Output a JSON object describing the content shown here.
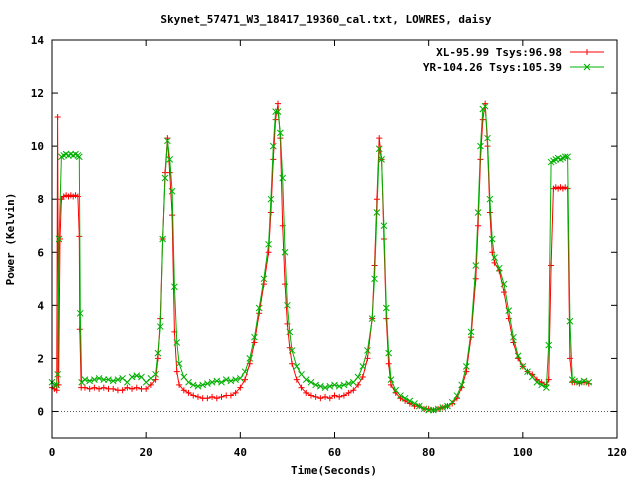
{
  "chart_data": {
    "type": "line",
    "title": "Skynet_57471_W3_18417_19360_cal.txt, LOWRES, daisy",
    "xlabel": "Time(Seconds)",
    "ylabel": "Power (Kelvin)",
    "xlim": [
      0,
      120
    ],
    "ylim": [
      -1,
      14
    ],
    "xticks": [
      0,
      20,
      40,
      60,
      80,
      100,
      120
    ],
    "yticks": [
      0,
      2,
      4,
      6,
      8,
      10,
      12,
      14
    ],
    "legend_position": "top-right",
    "series": [
      {
        "name": "XL-95.99 Tsys:96.98",
        "color": "#ff0000",
        "marker": "plus",
        "points": [
          [
            0.0,
            0.9
          ],
          [
            0.5,
            0.85
          ],
          [
            1.0,
            0.8
          ],
          [
            1.2,
            11.1
          ],
          [
            1.4,
            1.0
          ],
          [
            1.7,
            6.5
          ],
          [
            2.0,
            8.0
          ],
          [
            2.5,
            8.1
          ],
          [
            3.0,
            8.15
          ],
          [
            3.5,
            8.1
          ],
          [
            4.0,
            8.15
          ],
          [
            4.5,
            8.1
          ],
          [
            5.0,
            8.15
          ],
          [
            5.5,
            8.1
          ],
          [
            5.8,
            6.6
          ],
          [
            5.9,
            3.1
          ],
          [
            6.2,
            0.9
          ],
          [
            7,
            0.9
          ],
          [
            8,
            0.85
          ],
          [
            9,
            0.9
          ],
          [
            10,
            0.85
          ],
          [
            11,
            0.9
          ],
          [
            12,
            0.85
          ],
          [
            13,
            0.85
          ],
          [
            14,
            0.8
          ],
          [
            15,
            0.8
          ],
          [
            16,
            0.9
          ],
          [
            17,
            0.85
          ],
          [
            18,
            0.9
          ],
          [
            19,
            0.85
          ],
          [
            20,
            0.85
          ],
          [
            21,
            1.0
          ],
          [
            22,
            1.2
          ],
          [
            22.5,
            2.0
          ],
          [
            23,
            3.5
          ],
          [
            23.5,
            6.5
          ],
          [
            24,
            9.0
          ],
          [
            24.5,
            10.3
          ],
          [
            25,
            9.0
          ],
          [
            25.5,
            7.4
          ],
          [
            26,
            3.0
          ],
          [
            26.5,
            1.5
          ],
          [
            27,
            1.0
          ],
          [
            28,
            0.8
          ],
          [
            29,
            0.7
          ],
          [
            30,
            0.6
          ],
          [
            31,
            0.55
          ],
          [
            32,
            0.5
          ],
          [
            33,
            0.5
          ],
          [
            34,
            0.55
          ],
          [
            35,
            0.5
          ],
          [
            36,
            0.55
          ],
          [
            37,
            0.6
          ],
          [
            38,
            0.6
          ],
          [
            39,
            0.7
          ],
          [
            40,
            0.9
          ],
          [
            41,
            1.2
          ],
          [
            42,
            1.8
          ],
          [
            43,
            2.6
          ],
          [
            44,
            3.7
          ],
          [
            45,
            4.8
          ],
          [
            46,
            6.0
          ],
          [
            46.5,
            7.5
          ],
          [
            47,
            9.5
          ],
          [
            47.5,
            11.0
          ],
          [
            48,
            11.6
          ],
          [
            48.5,
            10.3
          ],
          [
            49,
            7.0
          ],
          [
            49.5,
            4.8
          ],
          [
            50,
            3.3
          ],
          [
            50.5,
            2.4
          ],
          [
            51,
            1.8
          ],
          [
            52,
            1.2
          ],
          [
            53,
            0.9
          ],
          [
            54,
            0.7
          ],
          [
            55,
            0.6
          ],
          [
            56,
            0.55
          ],
          [
            57,
            0.5
          ],
          [
            58,
            0.55
          ],
          [
            59,
            0.5
          ],
          [
            60,
            0.6
          ],
          [
            61,
            0.55
          ],
          [
            62,
            0.6
          ],
          [
            63,
            0.7
          ],
          [
            64,
            0.8
          ],
          [
            65,
            1.0
          ],
          [
            66,
            1.3
          ],
          [
            67,
            2.0
          ],
          [
            68,
            3.5
          ],
          [
            68.5,
            5.5
          ],
          [
            69,
            8.0
          ],
          [
            69.5,
            10.3
          ],
          [
            70,
            9.5
          ],
          [
            70.5,
            6.5
          ],
          [
            71,
            3.5
          ],
          [
            71.5,
            1.8
          ],
          [
            72,
            1.0
          ],
          [
            73,
            0.7
          ],
          [
            74,
            0.5
          ],
          [
            75,
            0.4
          ],
          [
            76,
            0.3
          ],
          [
            77,
            0.2
          ],
          [
            78,
            0.2
          ],
          [
            79,
            0.1
          ],
          [
            80,
            0.1
          ],
          [
            81,
            0.05
          ],
          [
            82,
            0.1
          ],
          [
            83,
            0.15
          ],
          [
            84,
            0.2
          ],
          [
            85,
            0.3
          ],
          [
            86,
            0.5
          ],
          [
            87,
            0.9
          ],
          [
            88,
            1.5
          ],
          [
            89,
            2.8
          ],
          [
            90,
            5.0
          ],
          [
            90.5,
            7.0
          ],
          [
            91,
            9.5
          ],
          [
            91.5,
            11.0
          ],
          [
            92,
            11.6
          ],
          [
            92.5,
            10.0
          ],
          [
            93,
            7.5
          ],
          [
            93.5,
            6.0
          ],
          [
            94,
            5.6
          ],
          [
            95,
            5.3
          ],
          [
            96,
            4.5
          ],
          [
            97,
            3.5
          ],
          [
            98,
            2.6
          ],
          [
            99,
            2.0
          ],
          [
            100,
            1.7
          ],
          [
            101,
            1.5
          ],
          [
            102,
            1.4
          ],
          [
            103,
            1.2
          ],
          [
            104,
            1.1
          ],
          [
            105,
            1.0
          ],
          [
            105.5,
            1.2
          ],
          [
            106,
            5.5
          ],
          [
            106.5,
            8.4
          ],
          [
            107,
            8.45
          ],
          [
            107.5,
            8.4
          ],
          [
            108,
            8.45
          ],
          [
            108.5,
            8.4
          ],
          [
            109,
            8.45
          ],
          [
            109.5,
            8.4
          ],
          [
            110,
            2.0
          ],
          [
            110.5,
            1.1
          ],
          [
            111,
            1.1
          ],
          [
            112,
            1.05
          ],
          [
            113,
            1.1
          ],
          [
            114,
            1.05
          ]
        ]
      },
      {
        "name": "YR-104.26 Tsys:105.39",
        "color": "#00b000",
        "marker": "cross",
        "points": [
          [
            0.0,
            1.1
          ],
          [
            0.5,
            1.0
          ],
          [
            1.0,
            1.0
          ],
          [
            1.2,
            1.4
          ],
          [
            1.5,
            6.5
          ],
          [
            2.0,
            9.6
          ],
          [
            2.5,
            9.65
          ],
          [
            3.0,
            9.7
          ],
          [
            3.5,
            9.65
          ],
          [
            4.0,
            9.7
          ],
          [
            4.5,
            9.65
          ],
          [
            5.0,
            9.7
          ],
          [
            5.5,
            9.65
          ],
          [
            5.8,
            9.6
          ],
          [
            6.0,
            3.7
          ],
          [
            6.3,
            1.1
          ],
          [
            7,
            1.2
          ],
          [
            8,
            1.15
          ],
          [
            9,
            1.2
          ],
          [
            10,
            1.25
          ],
          [
            11,
            1.2
          ],
          [
            12,
            1.2
          ],
          [
            13,
            1.15
          ],
          [
            14,
            1.2
          ],
          [
            15,
            1.25
          ],
          [
            16,
            1.1
          ],
          [
            17,
            1.3
          ],
          [
            18,
            1.35
          ],
          [
            19,
            1.3
          ],
          [
            20,
            1.1
          ],
          [
            21,
            1.25
          ],
          [
            22,
            1.4
          ],
          [
            22.5,
            2.2
          ],
          [
            23,
            3.2
          ],
          [
            23.5,
            6.5
          ],
          [
            24,
            8.8
          ],
          [
            24.5,
            10.2
          ],
          [
            25,
            9.5
          ],
          [
            25.5,
            8.3
          ],
          [
            26,
            4.7
          ],
          [
            26.5,
            2.6
          ],
          [
            27,
            1.8
          ],
          [
            28,
            1.3
          ],
          [
            29,
            1.1
          ],
          [
            30,
            1.0
          ],
          [
            31,
            0.95
          ],
          [
            32,
            1.0
          ],
          [
            33,
            1.05
          ],
          [
            34,
            1.1
          ],
          [
            35,
            1.15
          ],
          [
            36,
            1.1
          ],
          [
            37,
            1.2
          ],
          [
            38,
            1.15
          ],
          [
            39,
            1.2
          ],
          [
            40,
            1.25
          ],
          [
            41,
            1.5
          ],
          [
            42,
            2.0
          ],
          [
            43,
            2.8
          ],
          [
            44,
            3.9
          ],
          [
            45,
            5.0
          ],
          [
            46,
            6.3
          ],
          [
            46.5,
            8.0
          ],
          [
            47,
            10.0
          ],
          [
            47.5,
            11.3
          ],
          [
            48,
            11.3
          ],
          [
            48.5,
            10.5
          ],
          [
            49,
            8.8
          ],
          [
            49.5,
            6.0
          ],
          [
            50,
            4.0
          ],
          [
            50.5,
            3.0
          ],
          [
            51,
            2.3
          ],
          [
            52,
            1.7
          ],
          [
            53,
            1.4
          ],
          [
            54,
            1.2
          ],
          [
            55,
            1.1
          ],
          [
            56,
            1.0
          ],
          [
            57,
            0.95
          ],
          [
            58,
            0.9
          ],
          [
            59,
            0.95
          ],
          [
            60,
            1.0
          ],
          [
            61,
            0.95
          ],
          [
            62,
            1.0
          ],
          [
            63,
            1.05
          ],
          [
            64,
            1.1
          ],
          [
            65,
            1.3
          ],
          [
            66,
            1.7
          ],
          [
            67,
            2.3
          ],
          [
            68,
            3.5
          ],
          [
            68.5,
            5.0
          ],
          [
            69,
            7.5
          ],
          [
            69.5,
            9.9
          ],
          [
            70,
            9.5
          ],
          [
            70.5,
            7.0
          ],
          [
            71,
            3.9
          ],
          [
            71.5,
            2.2
          ],
          [
            72,
            1.2
          ],
          [
            73,
            0.8
          ],
          [
            74,
            0.6
          ],
          [
            75,
            0.5
          ],
          [
            76,
            0.4
          ],
          [
            77,
            0.3
          ],
          [
            78,
            0.2
          ],
          [
            79,
            0.1
          ],
          [
            80,
            0.05
          ],
          [
            81,
            0.05
          ],
          [
            82,
            0.1
          ],
          [
            83,
            0.15
          ],
          [
            84,
            0.2
          ],
          [
            85,
            0.35
          ],
          [
            86,
            0.6
          ],
          [
            87,
            1.0
          ],
          [
            88,
            1.7
          ],
          [
            89,
            3.0
          ],
          [
            90,
            5.5
          ],
          [
            90.5,
            7.5
          ],
          [
            91,
            10.0
          ],
          [
            91.5,
            11.4
          ],
          [
            92,
            11.5
          ],
          [
            92.5,
            10.3
          ],
          [
            93,
            8.0
          ],
          [
            93.5,
            6.5
          ],
          [
            94,
            5.8
          ],
          [
            95,
            5.4
          ],
          [
            96,
            4.8
          ],
          [
            97,
            3.8
          ],
          [
            98,
            2.8
          ],
          [
            99,
            2.1
          ],
          [
            100,
            1.7
          ],
          [
            101,
            1.5
          ],
          [
            102,
            1.3
          ],
          [
            103,
            1.1
          ],
          [
            104,
            1.0
          ],
          [
            105,
            0.9
          ],
          [
            105.5,
            2.5
          ],
          [
            106,
            9.4
          ],
          [
            106.5,
            9.45
          ],
          [
            107,
            9.5
          ],
          [
            107.5,
            9.55
          ],
          [
            108,
            9.5
          ],
          [
            108.5,
            9.55
          ],
          [
            109,
            9.6
          ],
          [
            109.5,
            9.6
          ],
          [
            110,
            3.4
          ],
          [
            110.5,
            1.2
          ],
          [
            111,
            1.15
          ],
          [
            112,
            1.1
          ],
          [
            113,
            1.15
          ],
          [
            114,
            1.1
          ]
        ]
      }
    ]
  }
}
